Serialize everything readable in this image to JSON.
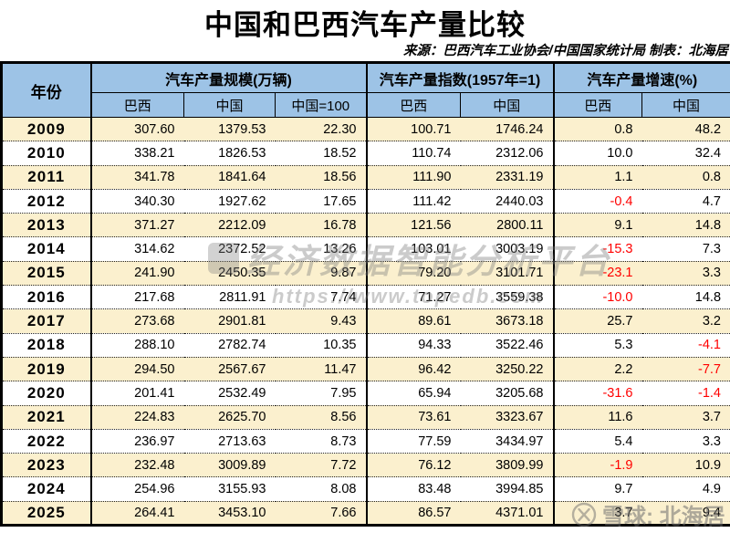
{
  "title": "中国和巴西汽车产量比较",
  "source_note": "来源：巴西汽车工业协会/中国国家统计局 制表：北海居",
  "watermark_center": {
    "line1": "经济数据智能分析平台",
    "line2": "https://www.topedb.com"
  },
  "watermark_corner": {
    "text": "雪球: 北海居"
  },
  "colors": {
    "header_bg": "#9DC3E6",
    "row_alt_bg": "#FBF0CE",
    "negative": "#FF0000",
    "border": "#000000"
  },
  "table": {
    "year_header": "年份",
    "header_groups": [
      {
        "label": "汽车产量规模(万辆)",
        "columns": [
          "巴西",
          "中国",
          "中国=100"
        ]
      },
      {
        "label": "汽车产量指数(1957年=1)",
        "columns": [
          "巴西",
          "中国"
        ]
      },
      {
        "label": "汽车产量增速(%)",
        "columns": [
          "巴西",
          "中国"
        ]
      }
    ],
    "rows": [
      [
        "2009",
        "307.60",
        "1379.53",
        "22.30",
        "100.71",
        "1746.24",
        "0.8",
        "48.2"
      ],
      [
        "2010",
        "338.21",
        "1826.53",
        "18.52",
        "110.74",
        "2312.06",
        "10.0",
        "32.4"
      ],
      [
        "2011",
        "341.78",
        "1841.64",
        "18.56",
        "111.90",
        "2331.19",
        "1.1",
        "0.8"
      ],
      [
        "2012",
        "340.30",
        "1927.62",
        "17.65",
        "111.42",
        "2440.03",
        "-0.4",
        "4.7"
      ],
      [
        "2013",
        "371.27",
        "2212.09",
        "16.78",
        "121.56",
        "2800.11",
        "9.1",
        "14.8"
      ],
      [
        "2014",
        "314.62",
        "2372.52",
        "13.26",
        "103.01",
        "3003.19",
        "-15.3",
        "7.3"
      ],
      [
        "2015",
        "241.90",
        "2450.35",
        "9.87",
        "79.20",
        "3101.71",
        "-23.1",
        "3.3"
      ],
      [
        "2016",
        "217.68",
        "2811.91",
        "7.74",
        "71.27",
        "3559.38",
        "-10.0",
        "14.8"
      ],
      [
        "2017",
        "273.68",
        "2901.81",
        "9.43",
        "89.61",
        "3673.18",
        "25.7",
        "3.2"
      ],
      [
        "2018",
        "288.10",
        "2782.74",
        "10.35",
        "94.33",
        "3522.46",
        "5.3",
        "-4.1"
      ],
      [
        "2019",
        "294.50",
        "2567.67",
        "11.47",
        "96.42",
        "3250.22",
        "2.2",
        "-7.7"
      ],
      [
        "2020",
        "201.41",
        "2532.49",
        "7.95",
        "65.94",
        "3205.68",
        "-31.6",
        "-1.4"
      ],
      [
        "2021",
        "224.83",
        "2625.70",
        "8.56",
        "73.61",
        "3323.67",
        "11.6",
        "3.7"
      ],
      [
        "2022",
        "236.97",
        "2713.63",
        "8.73",
        "77.59",
        "3434.97",
        "5.4",
        "3.3"
      ],
      [
        "2023",
        "232.48",
        "3009.89",
        "7.72",
        "76.12",
        "3809.99",
        "-1.9",
        "10.9"
      ],
      [
        "2024",
        "254.96",
        "3155.93",
        "8.08",
        "83.48",
        "3994.85",
        "9.7",
        "4.9"
      ],
      [
        "2025",
        "264.41",
        "3453.10",
        "7.66",
        "86.57",
        "4371.01",
        "3.7",
        "9.4"
      ]
    ]
  },
  "chart_data": {
    "type": "table",
    "title": "中国和巴西汽车产量比较",
    "column_groups": [
      "年份",
      "汽车产量规模(万辆)",
      "汽车产量指数(1957年=1)",
      "汽车产量增速(%)"
    ],
    "columns": [
      "年份",
      "规模-巴西",
      "规模-中国",
      "规模-中国=100",
      "指数-巴西",
      "指数-中国",
      "增速-巴西",
      "增速-中国"
    ],
    "rows": [
      [
        2009,
        307.6,
        1379.53,
        22.3,
        100.71,
        1746.24,
        0.8,
        48.2
      ],
      [
        2010,
        338.21,
        1826.53,
        18.52,
        110.74,
        2312.06,
        10.0,
        32.4
      ],
      [
        2011,
        341.78,
        1841.64,
        18.56,
        111.9,
        2331.19,
        1.1,
        0.8
      ],
      [
        2012,
        340.3,
        1927.62,
        17.65,
        111.42,
        2440.03,
        -0.4,
        4.7
      ],
      [
        2013,
        371.27,
        2212.09,
        16.78,
        121.56,
        2800.11,
        9.1,
        14.8
      ],
      [
        2014,
        314.62,
        2372.52,
        13.26,
        103.01,
        3003.19,
        -15.3,
        7.3
      ],
      [
        2015,
        241.9,
        2450.35,
        9.87,
        79.2,
        3101.71,
        -23.1,
        3.3
      ],
      [
        2016,
        217.68,
        2811.91,
        7.74,
        71.27,
        3559.38,
        -10.0,
        14.8
      ],
      [
        2017,
        273.68,
        2901.81,
        9.43,
        89.61,
        3673.18,
        25.7,
        3.2
      ],
      [
        2018,
        288.1,
        2782.74,
        10.35,
        94.33,
        3522.46,
        5.3,
        -4.1
      ],
      [
        2019,
        294.5,
        2567.67,
        11.47,
        96.42,
        3250.22,
        2.2,
        -7.7
      ],
      [
        2020,
        201.41,
        2532.49,
        7.95,
        65.94,
        3205.68,
        -31.6,
        -1.4
      ],
      [
        2021,
        224.83,
        2625.7,
        8.56,
        73.61,
        3323.67,
        11.6,
        3.7
      ],
      [
        2022,
        236.97,
        2713.63,
        8.73,
        77.59,
        3434.97,
        5.4,
        3.3
      ],
      [
        2023,
        232.48,
        3009.89,
        7.72,
        76.12,
        3809.99,
        -1.9,
        10.9
      ],
      [
        2024,
        254.96,
        3155.93,
        8.08,
        83.48,
        3994.85,
        9.7,
        4.9
      ],
      [
        2025,
        264.41,
        3453.1,
        7.66,
        86.57,
        4371.01,
        3.7,
        9.4
      ]
    ]
  }
}
